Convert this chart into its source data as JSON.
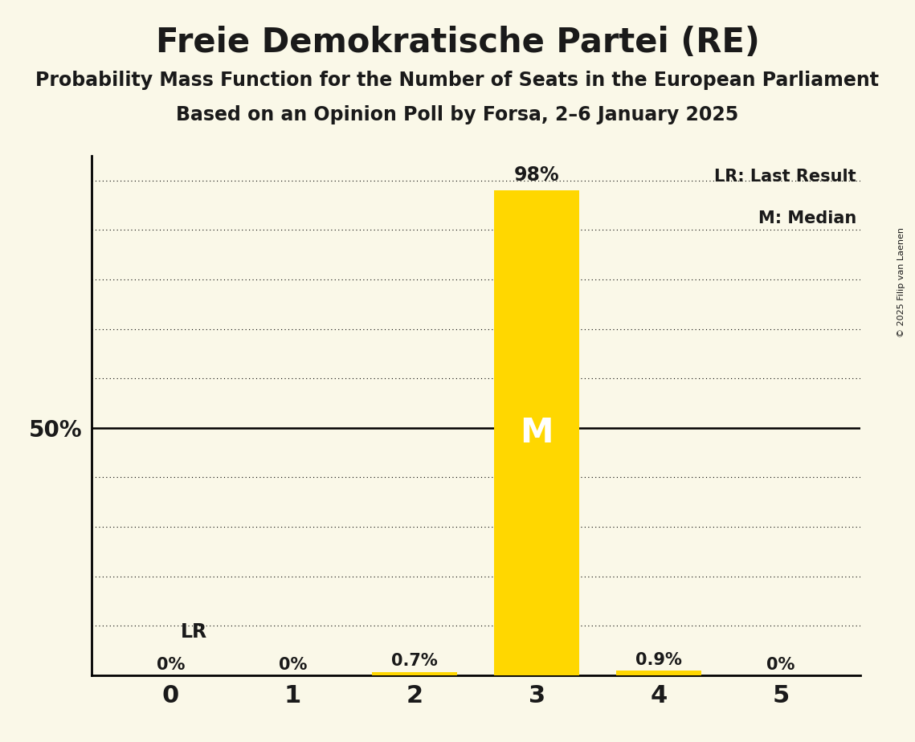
{
  "title": "Freie Demokratische Partei (RE)",
  "subtitle1": "Probability Mass Function for the Number of Seats in the European Parliament",
  "subtitle2": "Based on an Opinion Poll by Forsa, 2–6 January 2025",
  "copyright": "© 2025 Filip van Laenen",
  "seats": [
    0,
    1,
    2,
    3,
    4,
    5
  ],
  "probabilities": [
    0.0,
    0.0,
    0.007,
    0.98,
    0.009,
    0.0
  ],
  "bar_color": "#FFD700",
  "median_seat": 3,
  "last_result_seat": 0,
  "background_color": "#FAF8E8",
  "title_fontsize": 30,
  "subtitle_fontsize": 17,
  "ylabel_50pct": "50%",
  "legend_lr": "LR: Last Result",
  "legend_m": "M: Median",
  "ylim": [
    0,
    1.05
  ],
  "gridline_levels": [
    0.1,
    0.2,
    0.3,
    0.4,
    0.5,
    0.6,
    0.7,
    0.8,
    0.9,
    1.0
  ],
  "solid_line_level": 0.5,
  "text_color": "#1a1a1a",
  "bar_width": 0.7
}
